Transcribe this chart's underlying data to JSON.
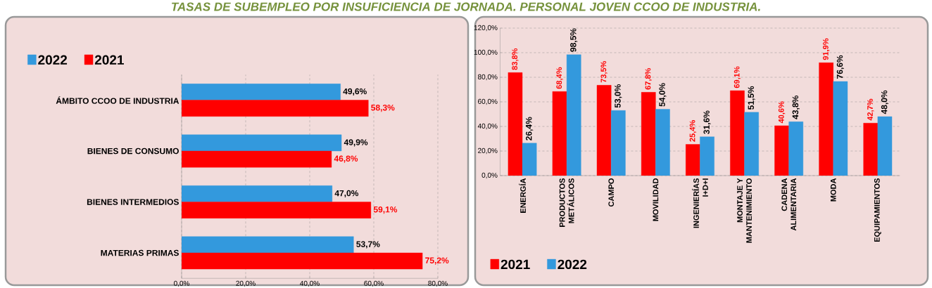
{
  "chart_data": [
    {
      "type": "bar",
      "orientation": "horizontal",
      "title": "TASAS DE SUBEMPLEO POR INSUFICIENCIA DE JORNADA. PERSONAL JOVEN CCOO DE INDUSTRIA.",
      "categories": [
        "ÁMBITO CCOO DE INDUSTRIA",
        "BIENES DE CONSUMO",
        "BIENES INTERMEDIOS",
        "MATERIAS PRIMAS"
      ],
      "series": [
        {
          "name": "2022",
          "color": "#3399dd",
          "values": [
            49.6,
            49.9,
            47.0,
            53.7
          ],
          "value_labels": [
            "49,6%",
            "49,9%",
            "47,0%",
            "53,7%"
          ]
        },
        {
          "name": "2021",
          "color": "#ff0000",
          "values": [
            58.3,
            46.8,
            59.1,
            75.2
          ],
          "value_labels": [
            "58,3%",
            "46,8%",
            "59,1%",
            "75,2%"
          ]
        }
      ],
      "xlim": [
        0,
        80
      ],
      "xticks": [
        {
          "value": 0,
          "label": "0,0%"
        },
        {
          "value": 20,
          "label": "20,0%"
        },
        {
          "value": 40,
          "label": "40,0%"
        },
        {
          "value": 60,
          "label": "60,0%"
        },
        {
          "value": 80,
          "label": "80,0%"
        }
      ],
      "grid": "x",
      "legend": "top left"
    },
    {
      "type": "bar",
      "categories": [
        "ENERGÍA",
        "PRODUCTOS METÁLICOS",
        "CAMPO",
        "MOVILIDAD",
        "INGENIERÍAS I+D+I",
        "MONTAJE Y MANTENIMIENTO",
        "CADENA ALIMENTARIA",
        "MODA",
        "EQUIPAMIENTOS"
      ],
      "series": [
        {
          "name": "2021",
          "color": "#ff0000",
          "values": [
            83.8,
            68.4,
            73.5,
            67.8,
            25.4,
            69.1,
            40.6,
            91.9,
            42.7
          ],
          "value_labels": [
            "83,8%",
            "68,4%",
            "73,5%",
            "67,8%",
            "25,4%",
            "69,1%",
            "40,6%",
            "91,9%",
            "42,7%"
          ]
        },
        {
          "name": "2022",
          "color": "#3399dd",
          "values": [
            26.4,
            98.5,
            53.0,
            54.0,
            31.6,
            51.5,
            43.8,
            76.6,
            48.0
          ],
          "value_labels": [
            "26,4%",
            "98,5%",
            "53,0%",
            "54,0%",
            "31,6%",
            "51,5%",
            "43,8%",
            "76,6%",
            "48,0%"
          ]
        }
      ],
      "ylim": [
        0,
        120
      ],
      "yticks": [
        {
          "value": 0,
          "label": "0,0%"
        },
        {
          "value": 20,
          "label": "20,0%"
        },
        {
          "value": 40,
          "label": "40,0%"
        },
        {
          "value": 60,
          "label": "60,0%"
        },
        {
          "value": 80,
          "label": "80,0%"
        },
        {
          "value": 100,
          "label": "100,0%"
        },
        {
          "value": 120,
          "label": "120,0%"
        }
      ],
      "grid": "y",
      "legend": "bottom left"
    }
  ]
}
